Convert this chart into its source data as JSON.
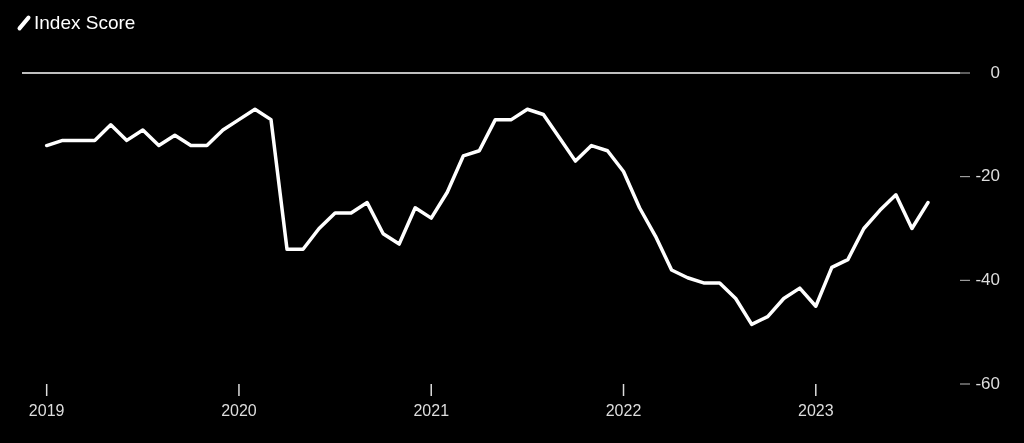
{
  "chart_data": {
    "type": "line",
    "legend": "top left",
    "marker": "none",
    "line_style": "solid",
    "x": [
      "2019-01",
      "2019-02",
      "2019-03",
      "2019-04",
      "2019-05",
      "2019-06",
      "2019-07",
      "2019-08",
      "2019-09",
      "2019-10",
      "2019-11",
      "2019-12",
      "2020-01",
      "2020-02",
      "2020-03",
      "2020-04",
      "2020-05",
      "2020-06",
      "2020-07",
      "2020-08",
      "2020-09",
      "2020-10",
      "2020-11",
      "2020-12",
      "2021-01",
      "2021-02",
      "2021-03",
      "2021-04",
      "2021-05",
      "2021-06",
      "2021-07",
      "2021-08",
      "2021-09",
      "2021-10",
      "2021-11",
      "2021-12",
      "2022-01",
      "2022-02",
      "2022-03",
      "2022-04",
      "2022-05",
      "2022-06",
      "2022-07",
      "2022-08",
      "2022-09",
      "2022-10",
      "2022-11",
      "2022-12",
      "2023-01",
      "2023-02",
      "2023-03",
      "2023-04",
      "2023-05",
      "2023-06",
      "2023-07",
      "2023-08"
    ],
    "series": [
      {
        "name": "Index Score",
        "color": "#ffffff",
        "values": [
          -14,
          -13,
          -13,
          -13,
          -10,
          -13,
          -11,
          -14,
          -12,
          -14,
          -14,
          -11,
          -9,
          -7,
          -9,
          -34,
          -34,
          -30,
          -27,
          -27,
          -25,
          -31,
          -33,
          -26,
          -28,
          -23,
          -16,
          -15,
          -9,
          -9,
          -7,
          -8,
          -12.5,
          -17,
          -14,
          -15,
          -19,
          -26,
          -31.5,
          -38,
          -39.5,
          -40.5,
          -40.5,
          -43.5,
          -48.5,
          -47,
          -43.5,
          -41.5,
          -45,
          -37.5,
          -36,
          -30,
          -26.5,
          -23.5,
          -30,
          -25
        ]
      }
    ],
    "xlim": [
      "2018-11-15",
      "2023-10-01"
    ],
    "xticks": [
      {
        "value": "2019",
        "label": "2019"
      },
      {
        "value": "2020",
        "label": "2020"
      },
      {
        "value": "2021",
        "label": "2021"
      },
      {
        "value": "2022",
        "label": "2022"
      },
      {
        "value": "2023",
        "label": "2023"
      }
    ],
    "ylim": [
      -60,
      0
    ],
    "yticks": [
      0,
      -20,
      -40,
      -60
    ],
    "ref_lines": [
      {
        "axis": "y",
        "value": 0,
        "color": "#ffffff"
      }
    ]
  }
}
